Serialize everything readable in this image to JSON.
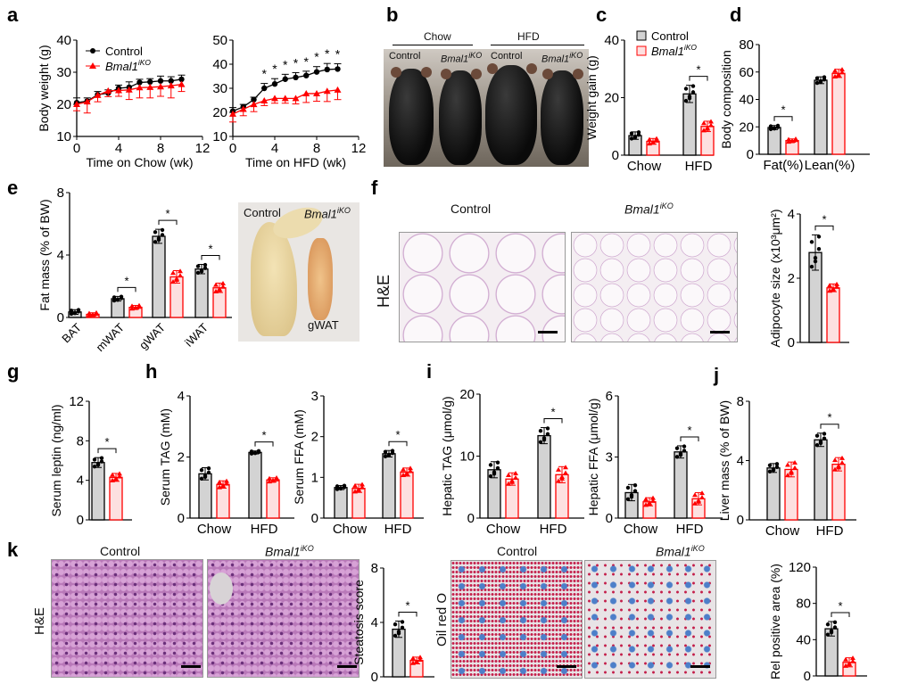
{
  "panel_letters": {
    "a": "a",
    "b": "b",
    "c": "c",
    "d": "d",
    "e": "e",
    "f": "f",
    "g": "g",
    "h": "h",
    "i": "i",
    "j": "j",
    "k": "k"
  },
  "groups": {
    "control": "Control",
    "ko_base": "Bmal1",
    "ko_sup": "iKO"
  },
  "colors": {
    "control_fill": "#d3d3d3",
    "control_stroke": "#000000",
    "ko_fill": "#fde0e0",
    "ko_stroke": "#ff0000"
  },
  "images": {
    "b": {
      "diet_chow": "Chow",
      "diet_hfd": "HFD",
      "labels": [
        "Control",
        "Bmal1iKO",
        "Control",
        "Bmal1iKO"
      ]
    },
    "e": {
      "control": "Control",
      "ko": "Bmal1iKO",
      "tissue": "gWAT"
    },
    "f": {
      "stain": "H&E",
      "control": "Control",
      "ko": "Bmal1iKO"
    },
    "k": {
      "stain1": "H&E",
      "stain2": "Oil red O",
      "control": "Control",
      "ko": "Bmal1iKO"
    }
  },
  "chart_data": [
    {
      "id": "a_chow",
      "type": "line",
      "x": [
        0,
        1,
        2,
        3,
        4,
        5,
        6,
        7,
        8,
        9,
        10
      ],
      "series": [
        {
          "name": "Control",
          "values": [
            20.5,
            21,
            23,
            23.5,
            25,
            25.3,
            26.8,
            27,
            27.3,
            27.3,
            27.8
          ],
          "err": [
            1.5,
            1,
            1,
            1,
            1,
            1.7,
            1,
            1,
            1.5,
            1.3,
            1.3
          ]
        },
        {
          "name": "Bmal1iKO",
          "values": [
            20,
            20.8,
            22.8,
            24.2,
            24.3,
            24.5,
            25.2,
            25.3,
            25.5,
            25.8,
            26.2
          ],
          "err": [
            2,
            3.5,
            2,
            1.8,
            1.8,
            3,
            3.2,
            3.3,
            3,
            3.8,
            2.2
          ]
        }
      ],
      "xlabel": "Time on Chow (wk)",
      "ylabel": "Body weight (g)",
      "xlim": [
        0,
        12
      ],
      "xticks": [
        0,
        4,
        8,
        12
      ],
      "ylim": [
        10,
        40
      ],
      "yticks": [
        10,
        20,
        30,
        40
      ],
      "legend": "top-left",
      "sig_x": []
    },
    {
      "id": "a_hfd",
      "type": "line",
      "x": [
        0,
        1,
        2,
        3,
        4,
        5,
        6,
        7,
        8,
        9,
        10
      ],
      "series": [
        {
          "name": "Control",
          "values": [
            20.5,
            22.3,
            25.3,
            30,
            31.8,
            33.8,
            34.5,
            35.3,
            36.8,
            37.8,
            38
          ],
          "err": [
            1.5,
            1,
            1,
            2,
            2.2,
            2,
            2,
            1.8,
            2.2,
            2.5,
            2.2
          ]
        },
        {
          "name": "Bmal1iKO",
          "values": [
            19.3,
            21.3,
            23.3,
            24.8,
            25.8,
            25.8,
            25.8,
            27.8,
            27.8,
            28.8,
            29.3
          ],
          "err": [
            3.3,
            2.7,
            3,
            2,
            2,
            2,
            2.3,
            3.7,
            3.2,
            4.3,
            4
          ]
        }
      ],
      "xlabel": "Time on HFD (wk)",
      "ylabel": "",
      "xlim": [
        0,
        12
      ],
      "xticks": [
        0,
        4,
        8,
        12
      ],
      "ylim": [
        10,
        50
      ],
      "yticks": [
        10,
        20,
        30,
        40,
        50
      ],
      "sig_x": [
        3,
        4,
        5,
        6,
        7,
        8,
        9,
        10
      ]
    },
    {
      "id": "c",
      "type": "bar",
      "categories": [
        "Chow",
        "HFD"
      ],
      "series": [
        {
          "name": "Control",
          "values": [
            6.8,
            21.3
          ],
          "err": [
            1.3,
            3
          ]
        },
        {
          "name": "Bmal1iKO",
          "values": [
            4.8,
            10
          ],
          "err": [
            1,
            1.8
          ]
        }
      ],
      "ylabel": "Weight gain (g)",
      "ylim": [
        0,
        40
      ],
      "yticks": [
        0,
        20,
        40
      ],
      "sig": [
        1
      ],
      "legend": "top"
    },
    {
      "id": "d",
      "type": "bar",
      "categories": [
        "Fat(%)",
        "Lean(%)"
      ],
      "series": [
        {
          "name": "Control",
          "values": [
            19.5,
            54
          ],
          "err": [
            1.5,
            2.5
          ]
        },
        {
          "name": "Bmal1iKO",
          "values": [
            10,
            59
          ],
          "err": [
            1.2,
            3
          ]
        }
      ],
      "ylabel": "Body composition",
      "ylim": [
        0,
        80
      ],
      "yticks": [
        0,
        20,
        40,
        60,
        80
      ],
      "sig": [
        0
      ]
    },
    {
      "id": "e",
      "type": "bar",
      "categories": [
        "BAT",
        "mWAT",
        "gWAT",
        "iWAT"
      ],
      "series": [
        {
          "name": "Control",
          "values": [
            0.35,
            1.2,
            5.2,
            3.1
          ],
          "err": [
            0.15,
            0.15,
            0.45,
            0.3
          ]
        },
        {
          "name": "Bmal1iKO",
          "values": [
            0.2,
            0.65,
            2.6,
            1.9
          ],
          "err": [
            0.1,
            0.12,
            0.4,
            0.3
          ]
        }
      ],
      "ylabel": "Fat mass (% of BW)",
      "ylim": [
        0,
        8
      ],
      "yticks": [
        0,
        4,
        8
      ],
      "sig": [
        1,
        2,
        3
      ]
    },
    {
      "id": "f",
      "type": "bar",
      "categories": [
        ""
      ],
      "series": [
        {
          "name": "Control",
          "values": [
            2.8
          ],
          "err": [
            0.55
          ]
        },
        {
          "name": "Bmal1iKO",
          "values": [
            1.7
          ],
          "err": [
            0.12
          ]
        }
      ],
      "ylabel": "Adipocyte size (x10³μm²)",
      "ylim": [
        0,
        4
      ],
      "yticks": [
        0,
        2,
        4
      ],
      "sig": [
        0
      ]
    },
    {
      "id": "g",
      "type": "bar",
      "categories": [
        ""
      ],
      "series": [
        {
          "name": "Control",
          "values": [
            5.8
          ],
          "err": [
            0.5
          ]
        },
        {
          "name": "Bmal1iKO",
          "values": [
            4.3
          ],
          "err": [
            0.4
          ]
        }
      ],
      "ylabel": "Serum leptin (ng/ml)",
      "ylim": [
        0,
        12
      ],
      "yticks": [
        0,
        4,
        8,
        12
      ],
      "sig": [
        0
      ]
    },
    {
      "id": "h_tag",
      "type": "bar",
      "categories": [
        "Chow",
        "HFD"
      ],
      "series": [
        {
          "name": "Control",
          "values": [
            1.45,
            2.15
          ],
          "err": [
            0.2,
            0.05
          ]
        },
        {
          "name": "Bmal1iKO",
          "values": [
            1.1,
            1.25
          ],
          "err": [
            0.12,
            0.07
          ]
        }
      ],
      "ylabel": "Serum TAG (mM)",
      "ylim": [
        0,
        4
      ],
      "yticks": [
        0,
        2,
        4
      ],
      "sig": [
        1
      ]
    },
    {
      "id": "h_ffa",
      "type": "bar",
      "categories": [
        "Chow",
        "HFD"
      ],
      "series": [
        {
          "name": "Control",
          "values": [
            0.75,
            1.58
          ],
          "err": [
            0.05,
            0.08
          ]
        },
        {
          "name": "Bmal1iKO",
          "values": [
            0.73,
            1.13
          ],
          "err": [
            0.1,
            0.1
          ]
        }
      ],
      "ylabel": "Serum FFA (mM)",
      "ylim": [
        0,
        3
      ],
      "yticks": [
        0,
        1,
        2,
        3
      ],
      "sig": [
        1
      ]
    },
    {
      "id": "i_tag",
      "type": "bar",
      "categories": [
        "Chow",
        "HFD"
      ],
      "series": [
        {
          "name": "Control",
          "values": [
            7.8,
            13.3
          ],
          "err": [
            1.3,
            1.3
          ]
        },
        {
          "name": "Bmal1iKO",
          "values": [
            6.3,
            7
          ],
          "err": [
            1,
            1.3
          ]
        }
      ],
      "ylabel": "Hepatic TAG (μmol/g)",
      "ylim": [
        0,
        20
      ],
      "yticks": [
        0,
        10,
        20
      ],
      "sig": [
        1
      ]
    },
    {
      "id": "i_ffa",
      "type": "bar",
      "categories": [
        "Chow",
        "HFD"
      ],
      "series": [
        {
          "name": "Control",
          "values": [
            1.25,
            3.25
          ],
          "err": [
            0.4,
            0.3
          ]
        },
        {
          "name": "Bmal1iKO",
          "values": [
            0.8,
            0.95
          ],
          "err": [
            0.2,
            0.3
          ]
        }
      ],
      "ylabel": "Hepatic FFA (μmol/g)",
      "ylim": [
        0,
        6
      ],
      "yticks": [
        0,
        3,
        6
      ],
      "sig": [
        1
      ]
    },
    {
      "id": "j",
      "type": "bar",
      "categories": [
        "Chow",
        "HFD"
      ],
      "series": [
        {
          "name": "Control",
          "values": [
            3.5,
            5.4
          ],
          "err": [
            0.3,
            0.45
          ]
        },
        {
          "name": "Bmal1iKO",
          "values": [
            3.4,
            3.75
          ],
          "err": [
            0.5,
            0.45
          ]
        }
      ],
      "ylabel": "Liver mass (% of BW)",
      "ylim": [
        0,
        8
      ],
      "yticks": [
        0,
        4,
        8
      ],
      "sig": [
        1
      ]
    },
    {
      "id": "k_steatosis",
      "type": "bar",
      "categories": [
        ""
      ],
      "series": [
        {
          "name": "Control",
          "values": [
            3.5
          ],
          "err": [
            0.6
          ]
        },
        {
          "name": "Bmal1iKO",
          "values": [
            1.2
          ],
          "err": [
            0.25
          ]
        }
      ],
      "ylabel": "Steatosis score",
      "ylim": [
        0,
        8
      ],
      "yticks": [
        0,
        4,
        8
      ],
      "sig": [
        0
      ]
    },
    {
      "id": "k_oro",
      "type": "bar",
      "categories": [
        ""
      ],
      "series": [
        {
          "name": "Control",
          "values": [
            52
          ],
          "err": [
            8
          ]
        },
        {
          "name": "Bmal1iKO",
          "values": [
            15
          ],
          "err": [
            5
          ]
        }
      ],
      "ylabel": "Rel positive area (%)",
      "ylim": [
        0,
        120
      ],
      "yticks": [
        0,
        40,
        80,
        120
      ],
      "sig": [
        0
      ]
    }
  ]
}
